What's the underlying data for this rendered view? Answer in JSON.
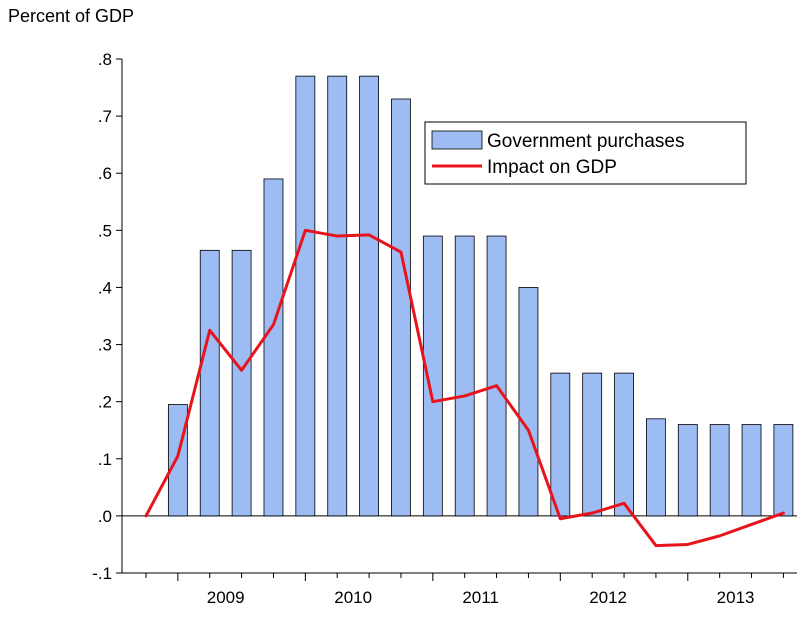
{
  "chart_data": {
    "type": "bar",
    "ylabel": "Percent of GDP",
    "ylim": [
      -0.1,
      0.8
    ],
    "yticks": [
      -0.1,
      0.0,
      0.1,
      0.2,
      0.3,
      0.4,
      0.5,
      0.6,
      0.7,
      0.8
    ],
    "ytick_labels": [
      "-.1",
      ".0",
      ".1",
      ".2",
      ".3",
      ".4",
      ".5",
      ".6",
      ".7",
      ".8"
    ],
    "x_start_quarter": "2008Q4",
    "year_labels": [
      "2009",
      "2010",
      "2011",
      "2012",
      "2013"
    ],
    "quarters": [
      "2008Q4",
      "2009Q1",
      "2009Q2",
      "2009Q3",
      "2009Q4",
      "2010Q1",
      "2010Q2",
      "2010Q3",
      "2010Q4",
      "2011Q1",
      "2011Q2",
      "2011Q3",
      "2011Q4",
      "2012Q1",
      "2012Q2",
      "2012Q3",
      "2012Q4",
      "2013Q1",
      "2013Q2",
      "2013Q3",
      "2013Q4"
    ],
    "series": [
      {
        "name": "Government purchases",
        "kind": "bar",
        "color": "#9DBCF4",
        "values": [
          0.0,
          0.195,
          0.465,
          0.465,
          0.59,
          0.77,
          0.77,
          0.77,
          0.73,
          0.49,
          0.49,
          0.49,
          0.4,
          0.25,
          0.25,
          0.25,
          0.17,
          0.16,
          0.16,
          0.16,
          0.16
        ]
      },
      {
        "name": "Impact on GDP",
        "kind": "line",
        "color": "#E8141C",
        "values": [
          0.0,
          0.105,
          0.325,
          0.255,
          0.335,
          0.5,
          0.49,
          0.492,
          0.462,
          0.2,
          0.21,
          0.228,
          0.15,
          -0.005,
          0.005,
          0.022,
          -0.052,
          -0.05,
          -0.035,
          -0.015,
          0.005
        ]
      }
    ],
    "legend_position": "top-right"
  }
}
